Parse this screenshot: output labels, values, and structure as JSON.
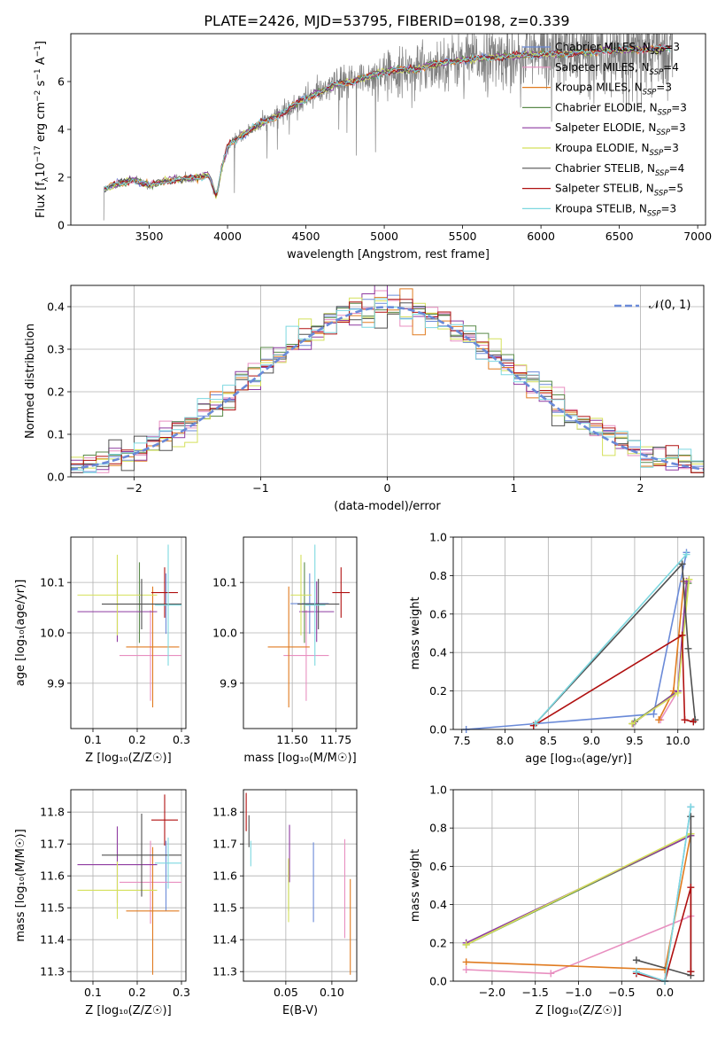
{
  "figure": {
    "title": "PLATE=2426, MJD=53795, FIBERID=0198, z=0.339"
  },
  "palette": {
    "Chabrier MILES": "#6a8ad8",
    "Salpeter MILES": "#e88fc0",
    "Kroupa MILES": "#e07b20",
    "Chabrier ELODIE": "#5a8a4a",
    "Salpeter ELODIE": "#8e3aa0",
    "Kroupa ELODIE": "#d4e05a",
    "Chabrier STELIB": "#505050",
    "Salpeter STELIB": "#b01010",
    "Kroupa STELIB": "#7dd8e0",
    "data": "#808080",
    "normal": "#6a8ad8"
  },
  "chart_data": [
    {
      "id": "spectrum",
      "type": "line",
      "xlabel": "wavelength [Angstrom, rest frame]",
      "ylabel": "Flux [f",
      "ylabel_sub": "λ",
      "ylabel_rest": "10",
      "ylabel_exp1": "−17",
      "ylabel_mid": " erg cm",
      "ylabel_exp2": "−2",
      "ylabel_mid2": " s",
      "ylabel_exp3": "−1",
      "ylabel_end": " A",
      "ylabel_exp4": "−1",
      "ylabel_close": "]",
      "xlim": [
        3000,
        7050
      ],
      "ylim": [
        0,
        8
      ],
      "xticks": [
        3500,
        4000,
        4500,
        5000,
        5500,
        6000,
        6500,
        7000
      ],
      "yticks": [
        0,
        2,
        4,
        6
      ],
      "continuum": [
        [
          3210,
          1.5
        ],
        [
          3300,
          1.75
        ],
        [
          3400,
          1.9
        ],
        [
          3500,
          1.65
        ],
        [
          3600,
          1.85
        ],
        [
          3700,
          1.9
        ],
        [
          3800,
          2.0
        ],
        [
          3880,
          2.1
        ],
        [
          3930,
          1.2
        ],
        [
          3960,
          2.3
        ],
        [
          4000,
          3.3
        ],
        [
          4100,
          3.8
        ],
        [
          4200,
          4.2
        ],
        [
          4300,
          4.5
        ],
        [
          4400,
          4.9
        ],
        [
          4500,
          5.3
        ],
        [
          4600,
          5.6
        ],
        [
          4700,
          5.9
        ],
        [
          4800,
          6.0
        ],
        [
          4900,
          6.2
        ],
        [
          5000,
          6.4
        ],
        [
          5100,
          6.5
        ],
        [
          5200,
          6.5
        ],
        [
          5300,
          6.7
        ],
        [
          5400,
          6.8
        ],
        [
          5500,
          6.9
        ],
        [
          5600,
          6.95
        ],
        [
          5700,
          7.0
        ],
        [
          5800,
          7.05
        ],
        [
          5900,
          7.1
        ],
        [
          6000,
          7.15
        ],
        [
          6100,
          7.15
        ],
        [
          6200,
          7.2
        ],
        [
          6300,
          7.2
        ],
        [
          6400,
          7.3
        ],
        [
          6500,
          7.3
        ],
        [
          6600,
          7.35
        ],
        [
          6700,
          7.35
        ],
        [
          6800,
          7.4
        ],
        [
          6840,
          7.4
        ]
      ],
      "legend": [
        {
          "name": "Chabrier MILES",
          "n": "3"
        },
        {
          "name": "Salpeter MILES",
          "n": "4"
        },
        {
          "name": "Kroupa MILES",
          "n": "3"
        },
        {
          "name": "Chabrier ELODIE",
          "n": "3"
        },
        {
          "name": "Salpeter ELODIE",
          "n": "3"
        },
        {
          "name": "Kroupa ELODIE",
          "n": "3"
        },
        {
          "name": "Chabrier STELIB",
          "n": "4"
        },
        {
          "name": "Salpeter STELIB",
          "n": "5"
        },
        {
          "name": "Kroupa STELIB",
          "n": "3"
        }
      ],
      "legend_nssp_label": "N",
      "legend_nssp_sub": "SSP",
      "legend_placement": "top-right",
      "grid": false
    },
    {
      "id": "residuals",
      "type": "step",
      "xlabel": "(data-model)/error",
      "ylabel": "Normed distribution",
      "xlim": [
        -2.5,
        2.5
      ],
      "ylim": [
        0,
        0.45
      ],
      "xticks": [
        -2,
        -1,
        0,
        1,
        2
      ],
      "yticks": [
        0.0,
        0.1,
        0.2,
        0.3,
        0.4
      ],
      "bin_width": 0.1,
      "legend": [
        {
          "name": "𝒩(0, 1)"
        }
      ],
      "legend_placement": "top-right",
      "grid": true
    },
    {
      "id": "age_vs_Z",
      "type": "errorbar",
      "xlabel": "Z [log₁₀(Z/Z☉)]",
      "ylabel": "age  [log₁₀(age/yr)]",
      "xlim": [
        0.05,
        0.31
      ],
      "ylim": [
        9.81,
        10.19
      ],
      "xticks": [
        0.1,
        0.2,
        0.3
      ],
      "yticks": [
        9.9,
        10.0,
        10.1
      ],
      "points": [
        {
          "model": "Chabrier MILES",
          "x": 0.265,
          "y": 10.058,
          "xerr": 0.0,
          "yerr": 0.06
        },
        {
          "model": "Salpeter MILES",
          "x": 0.23,
          "y": 9.955,
          "xerr": 0.07,
          "yerr": 0.09
        },
        {
          "model": "Kroupa MILES",
          "x": 0.235,
          "y": 9.972,
          "xerr": 0.06,
          "yerr": 0.12
        },
        {
          "model": "Chabrier ELODIE",
          "x": 0.205,
          "y": 10.06,
          "xerr": 0.0,
          "yerr": 0.08
        },
        {
          "model": "Salpeter ELODIE",
          "x": 0.155,
          "y": 10.042,
          "xerr": 0.09,
          "yerr": 0.06
        },
        {
          "model": "Kroupa ELODIE",
          "x": 0.155,
          "y": 10.075,
          "xerr": 0.09,
          "yerr": 0.08
        },
        {
          "model": "Chabrier STELIB",
          "x": 0.21,
          "y": 10.057,
          "xerr": 0.09,
          "yerr": 0.05
        },
        {
          "model": "Salpeter STELIB",
          "x": 0.262,
          "y": 10.08,
          "xerr": 0.03,
          "yerr": 0.05
        },
        {
          "model": "Kroupa STELIB",
          "x": 0.27,
          "y": 10.055,
          "xerr": 0.03,
          "yerr": 0.12
        }
      ],
      "grid": true
    },
    {
      "id": "age_vs_mass",
      "type": "errorbar",
      "xlabel": "mass [log₁₀(M/M☉)]",
      "ylabel": "",
      "xlim": [
        11.22,
        11.87
      ],
      "ylim": [
        9.81,
        10.19
      ],
      "xticks": [
        11.5,
        11.75
      ],
      "xticklabels": [
        "11.50",
        "11.75"
      ],
      "yticks": [
        9.9,
        10.0,
        10.1
      ],
      "points": [
        {
          "model": "Chabrier MILES",
          "x": 11.6,
          "y": 10.058,
          "xerr": 0.11,
          "yerr": 0.06
        },
        {
          "model": "Salpeter MILES",
          "x": 11.58,
          "y": 9.955,
          "xerr": 0.13,
          "yerr": 0.09
        },
        {
          "model": "Kroupa MILES",
          "x": 11.48,
          "y": 9.972,
          "xerr": 0.12,
          "yerr": 0.12
        },
        {
          "model": "Chabrier ELODIE",
          "x": 11.57,
          "y": 10.06,
          "xerr": 0.0,
          "yerr": 0.08
        },
        {
          "model": "Salpeter ELODIE",
          "x": 11.64,
          "y": 10.042,
          "xerr": 0.1,
          "yerr": 0.06
        },
        {
          "model": "Kroupa ELODIE",
          "x": 11.55,
          "y": 10.075,
          "xerr": 0.06,
          "yerr": 0.08
        },
        {
          "model": "Chabrier STELIB",
          "x": 11.65,
          "y": 10.057,
          "xerr": 0.12,
          "yerr": 0.05
        },
        {
          "model": "Salpeter STELIB",
          "x": 11.78,
          "y": 10.08,
          "xerr": 0.05,
          "yerr": 0.05
        },
        {
          "model": "Kroupa STELIB",
          "x": 11.63,
          "y": 10.055,
          "xerr": 0.06,
          "yerr": 0.12
        }
      ],
      "grid": true
    },
    {
      "id": "mass_weight_vs_age",
      "type": "line",
      "xlabel": "age  [log₁₀(age/yr)]",
      "ylabel": "mass weight",
      "xlim": [
        7.4,
        10.3
      ],
      "ylim": [
        0,
        1.0
      ],
      "xticks": [
        7.5,
        8.0,
        8.5,
        9.0,
        9.5,
        10.0
      ],
      "xticklabels": [
        "7.5",
        "8.0",
        "8.5",
        "9.0",
        "9.5",
        "10.0"
      ],
      "yticks": [
        0.0,
        0.2,
        0.4,
        0.6,
        0.8,
        1.0
      ],
      "series": [
        {
          "name": "Chabrier MILES",
          "x": [
            7.55,
            8.35,
            9.72,
            10.1
          ],
          "y": [
            0.0,
            0.03,
            0.08,
            0.92
          ]
        },
        {
          "name": "Salpeter MILES",
          "x": [
            9.8,
            10.0,
            10.12
          ],
          "y": [
            0.05,
            0.2,
            0.77
          ]
        },
        {
          "name": "Kroupa MILES",
          "x": [
            9.78,
            9.95,
            10.07
          ],
          "y": [
            0.05,
            0.2,
            0.77
          ]
        },
        {
          "name": "Chabrier ELODIE",
          "x": [
            9.5,
            10.0,
            10.12
          ],
          "y": [
            0.04,
            0.2,
            0.76
          ]
        },
        {
          "name": "Salpeter ELODIE",
          "x": [
            9.48,
            10.0,
            10.1
          ],
          "y": [
            0.03,
            0.2,
            0.77
          ]
        },
        {
          "name": "Kroupa ELODIE",
          "x": [
            9.47,
            10.0,
            10.13
          ],
          "y": [
            0.03,
            0.19,
            0.78
          ]
        },
        {
          "name": "Chabrier STELIB",
          "x": [
            8.35,
            10.05,
            10.12,
            10.2
          ],
          "y": [
            0.03,
            0.86,
            0.42,
            0.05
          ]
        },
        {
          "name": "Salpeter STELIB",
          "x": [
            8.33,
            10.05,
            10.08,
            10.18
          ],
          "y": [
            0.02,
            0.49,
            0.05,
            0.04
          ]
        },
        {
          "name": "Kroupa STELIB",
          "x": [
            8.35,
            10.1
          ],
          "y": [
            0.03,
            0.91
          ]
        }
      ],
      "grid": true
    },
    {
      "id": "mass_vs_Z",
      "type": "errorbar",
      "xlabel": "Z [log₁₀(Z/Z☉)]",
      "ylabel": "mass [log₁₀(M/M☉)]",
      "xlim": [
        0.05,
        0.31
      ],
      "ylim": [
        11.27,
        11.87
      ],
      "xticks": [
        0.1,
        0.2,
        0.3
      ],
      "yticks": [
        11.3,
        11.4,
        11.5,
        11.6,
        11.7,
        11.8
      ],
      "points": [
        {
          "model": "Chabrier MILES",
          "x": 0.265,
          "y": 11.6,
          "xerr": 0.0,
          "yerr": 0.11
        },
        {
          "model": "Salpeter MILES",
          "x": 0.23,
          "y": 11.58,
          "xerr": 0.07,
          "yerr": 0.13
        },
        {
          "model": "Kroupa MILES",
          "x": 0.235,
          "y": 11.49,
          "xerr": 0.06,
          "yerr": 0.2
        },
        {
          "model": "Chabrier ELODIE",
          "x": 0.205,
          "y": 11.57,
          "xerr": 0.0,
          "yerr": 0.0
        },
        {
          "model": "Salpeter ELODIE",
          "x": 0.155,
          "y": 11.635,
          "xerr": 0.09,
          "yerr": 0.12
        },
        {
          "model": "Kroupa ELODIE",
          "x": 0.155,
          "y": 11.555,
          "xerr": 0.09,
          "yerr": 0.09
        },
        {
          "model": "Chabrier STELIB",
          "x": 0.21,
          "y": 11.665,
          "xerr": 0.09,
          "yerr": 0.13
        },
        {
          "model": "Salpeter STELIB",
          "x": 0.262,
          "y": 11.775,
          "xerr": 0.03,
          "yerr": 0.08
        },
        {
          "model": "Kroupa STELIB",
          "x": 0.27,
          "y": 11.64,
          "xerr": 0.03,
          "yerr": 0.08
        }
      ],
      "grid": true
    },
    {
      "id": "mass_vs_ebv",
      "type": "errorbar",
      "xlabel": "E(B-V)",
      "ylabel": "",
      "xlim": [
        0.004,
        0.127
      ],
      "ylim": [
        11.27,
        11.87
      ],
      "xticks": [
        0.05,
        0.1
      ],
      "xticklabels": [
        "0.05",
        "0.10"
      ],
      "yticks": [
        11.3,
        11.4,
        11.5,
        11.6,
        11.7,
        11.8
      ],
      "points": [
        {
          "model": "Chabrier MILES",
          "x": 0.08,
          "y": 11.58,
          "xerr": 0.0,
          "yerr": 0.125
        },
        {
          "model": "Salpeter MILES",
          "x": 0.114,
          "y": 11.56,
          "xerr": 0.0,
          "yerr": 0.155
        },
        {
          "model": "Kroupa MILES",
          "x": 0.12,
          "y": 11.44,
          "xerr": 0.0,
          "yerr": 0.15
        },
        {
          "model": "Chabrier ELODIE",
          "x": 0.053,
          "y": 11.57,
          "xerr": 0.0,
          "yerr": 0.08
        },
        {
          "model": "Salpeter ELODIE",
          "x": 0.054,
          "y": 11.67,
          "xerr": 0.0,
          "yerr": 0.09
        },
        {
          "model": "Kroupa ELODIE",
          "x": 0.053,
          "y": 11.555,
          "xerr": 0.0,
          "yerr": 0.1
        },
        {
          "model": "Chabrier STELIB",
          "x": 0.01,
          "y": 11.74,
          "xerr": 0.0,
          "yerr": 0.05
        },
        {
          "model": "Salpeter STELIB",
          "x": 0.007,
          "y": 11.8,
          "xerr": 0.0,
          "yerr": 0.06
        },
        {
          "model": "Kroupa STELIB",
          "x": 0.012,
          "y": 11.67,
          "xerr": 0.0,
          "yerr": 0.04
        }
      ],
      "grid": true
    },
    {
      "id": "mass_weight_vs_Z",
      "type": "line",
      "xlabel": "Z [log₁₀(Z/Z☉)]",
      "ylabel": "mass weight",
      "xlim": [
        -2.45,
        0.45
      ],
      "ylim": [
        0,
        1.0
      ],
      "xticks": [
        -2.0,
        -1.5,
        -1.0,
        -0.5,
        0.0
      ],
      "xticklabels": [
        "−2.0",
        "−1.5",
        "−1.0",
        "−0.5",
        "0.0"
      ],
      "yticks": [
        0.0,
        0.2,
        0.4,
        0.6,
        0.8,
        1.0
      ],
      "series": [
        {
          "name": "Chabrier MILES",
          "x": [
            -0.33,
            0.0,
            0.3
          ],
          "y": [
            0.05,
            0.0,
            0.91
          ]
        },
        {
          "name": "Salpeter MILES",
          "x": [
            -2.3,
            -1.32,
            0.3
          ],
          "y": [
            0.06,
            0.04,
            0.34
          ]
        },
        {
          "name": "Kroupa MILES",
          "x": [
            -2.3,
            0.0,
            0.3
          ],
          "y": [
            0.1,
            0.06,
            0.77
          ]
        },
        {
          "name": "Chabrier ELODIE",
          "x": [
            -2.3,
            0.3
          ],
          "y": [
            0.19,
            0.76
          ]
        },
        {
          "name": "Salpeter ELODIE",
          "x": [
            -2.3,
            0.3
          ],
          "y": [
            0.2,
            0.76
          ]
        },
        {
          "name": "Kroupa ELODIE",
          "x": [
            -2.3,
            0.3
          ],
          "y": [
            0.19,
            0.77
          ]
        },
        {
          "name": "Chabrier STELIB",
          "x": [
            -0.33,
            0.3,
            0.3,
            0.3
          ],
          "y": [
            0.11,
            0.03,
            0.86,
            0.05
          ]
        },
        {
          "name": "Salpeter STELIB",
          "x": [
            -0.33,
            0.0,
            0.3,
            0.3
          ],
          "y": [
            0.04,
            0.0,
            0.49,
            0.05
          ]
        },
        {
          "name": "Kroupa STELIB",
          "x": [
            -0.33,
            0.0,
            0.3
          ],
          "y": [
            0.05,
            0.0,
            0.91
          ]
        }
      ],
      "grid": true
    }
  ]
}
